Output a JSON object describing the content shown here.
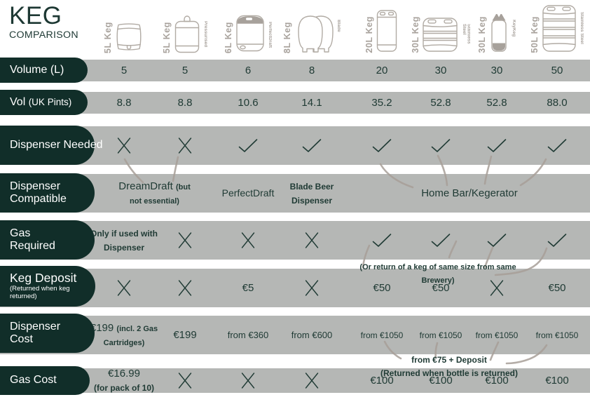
{
  "title": {
    "line1": "KEG",
    "line2": "COMPARISON"
  },
  "colors": {
    "pill_dark_green": "#112e29",
    "band_gray": "#b5b7b5",
    "text_green": "#203b35",
    "title_green": "#1d3833",
    "icon_gray": "#b1aba4",
    "keg_label_gray": "#a8a29c",
    "connector_taupe": "#a89f98"
  },
  "columns": [
    {
      "id": "keg-5l-barrel",
      "label": "5L Keg",
      "sublabel": "",
      "icon": "barrel-keg-icon"
    },
    {
      "id": "keg-5l-pressurised",
      "label": "5L Keg",
      "sublabel": "Pressurised",
      "icon": "pressurised-mini-keg-icon"
    },
    {
      "id": "keg-6l-perfectdraft",
      "label": "6L Keg",
      "sublabel": "PerfectDraft",
      "icon": "perfectdraft-keg-icon"
    },
    {
      "id": "keg-8l-blade",
      "label": "8L Keg",
      "sublabel": "Blade",
      "icon": "blade-keg-icon"
    },
    {
      "id": "keg-20l",
      "label": "20L Keg",
      "sublabel": "",
      "icon": "slim-steel-keg-icon"
    },
    {
      "id": "keg-30l-steel",
      "label": "30L Keg",
      "sublabel": "Stainless Steel",
      "icon": "stainless-keg-icon"
    },
    {
      "id": "keg-30l-keykeg",
      "label": "30L Keg",
      "sublabel": "KeyKeg",
      "icon": "keykeg-icon"
    },
    {
      "id": "keg-50l-steel",
      "label": "50L Keg",
      "sublabel": "Stainless Steel",
      "icon": "tall-stainless-keg-icon"
    }
  ],
  "rows": [
    {
      "id": "volume",
      "label_lines": [
        [
          {
            "t": "Volume (L)",
            "c": "pl"
          }
        ]
      ],
      "sub_lines": [],
      "cells": [
        {
          "col": 1,
          "t": "5"
        },
        {
          "col": 2,
          "t": "5"
        },
        {
          "col": 3,
          "t": "6"
        },
        {
          "col": 4,
          "t": "8"
        },
        {
          "col": 5,
          "t": "20"
        },
        {
          "col": 6,
          "t": "30"
        },
        {
          "col": 7,
          "t": "30"
        },
        {
          "col": 8,
          "t": "50"
        }
      ]
    },
    {
      "id": "pints",
      "label_lines": [
        [
          {
            "t": "Vol ",
            "c": "pl"
          },
          {
            "t": "(UK Pints)",
            "c": "pls"
          }
        ]
      ],
      "sub_lines": [],
      "cells": [
        {
          "col": 1,
          "t": "8.8"
        },
        {
          "col": 2,
          "t": "8.8"
        },
        {
          "col": 3,
          "t": "10.6"
        },
        {
          "col": 4,
          "t": "14.1"
        },
        {
          "col": 5,
          "t": "35.2"
        },
        {
          "col": 6,
          "t": "52.8"
        },
        {
          "col": 7,
          "t": "52.8"
        },
        {
          "col": 8,
          "t": "88.0"
        }
      ]
    },
    {
      "id": "dispenser-needed",
      "label_lines": [
        [
          {
            "t": "Dispenser Needed",
            "c": "pl"
          }
        ]
      ],
      "sub_lines": [],
      "cells": [
        {
          "col": 1,
          "k": "cross"
        },
        {
          "col": 2,
          "k": "cross"
        },
        {
          "col": 3,
          "k": "check"
        },
        {
          "col": 4,
          "k": "check"
        },
        {
          "col": 5,
          "k": "check"
        },
        {
          "col": 6,
          "k": "check"
        },
        {
          "col": 7,
          "k": "check"
        },
        {
          "col": 8,
          "k": "check"
        }
      ]
    },
    {
      "id": "dispenser-compatible",
      "label_lines": [
        [
          {
            "t": "Dispenser",
            "c": "pl"
          }
        ],
        [
          {
            "t": "Compatible",
            "c": "pl"
          }
        ]
      ],
      "sub_lines": [],
      "cells": [
        {
          "col": 1,
          "span": 2,
          "lines": [
            [
              {
                "t": "DreamDraft ",
                "c": "big"
              },
              {
                "t": "(but",
                "c": "smb"
              }
            ],
            [
              {
                "t": "not essential)",
                "c": "smb"
              }
            ]
          ]
        },
        {
          "col": 3,
          "t": "PerfectDraft",
          "c": "p14"
        },
        {
          "col": 4,
          "lines": [
            [
              {
                "t": "Blade Beer",
                "c": "md"
              }
            ],
            [
              {
                "t": "Dispenser",
                "c": "md"
              }
            ]
          ]
        },
        {
          "col": 5,
          "span": 4,
          "t": "Home Bar/Kegerator",
          "c": "p15"
        }
      ]
    },
    {
      "id": "gas-required",
      "label_lines": [
        [
          {
            "t": "Gas",
            "c": "pl"
          }
        ],
        [
          {
            "t": "Required",
            "c": "pl"
          }
        ]
      ],
      "sub_lines": [],
      "cells": [
        {
          "col": 1,
          "lines": [
            [
              {
                "t": "Only if used with",
                "c": "bld"
              }
            ],
            [
              {
                "t": "Dispenser",
                "c": "bld"
              }
            ]
          ]
        },
        {
          "col": 2,
          "k": "cross"
        },
        {
          "col": 3,
          "k": "cross"
        },
        {
          "col": 4,
          "k": "cross"
        },
        {
          "col": 5,
          "k": "check"
        },
        {
          "col": 6,
          "k": "check"
        },
        {
          "col": 7,
          "k": "check"
        },
        {
          "col": 8,
          "k": "check"
        }
      ]
    },
    {
      "id": "keg-deposit",
      "label_lines": [
        [
          {
            "t": "Keg Deposit",
            "c": "plk"
          }
        ]
      ],
      "sub_lines": [
        "(Returned when keg",
        "returned)"
      ],
      "cells": [
        {
          "col": 1,
          "k": "cross"
        },
        {
          "col": 2,
          "k": "cross"
        },
        {
          "col": 3,
          "t": "€5"
        },
        {
          "col": 4,
          "k": "cross"
        },
        {
          "col": 5,
          "t": "€50"
        },
        {
          "col": 6,
          "t": "€50"
        },
        {
          "col": 7,
          "k": "cross"
        },
        {
          "col": 8,
          "t": "€50"
        }
      ]
    },
    {
      "id": "dispenser-cost",
      "label_lines": [
        [
          {
            "t": "Dispenser",
            "c": "pl"
          }
        ],
        [
          {
            "t": "Cost",
            "c": "pl"
          }
        ]
      ],
      "sub_lines": [],
      "cells": [
        {
          "col": 1,
          "lines": [
            [
              {
                "t": "€199 ",
                "c": "num"
              },
              {
                "t": "(incl. 2 Gas",
                "c": "smb"
              }
            ],
            [
              {
                "t": "Cartridges)",
                "c": "smb"
              }
            ]
          ]
        },
        {
          "col": 2,
          "t": "€199"
        },
        {
          "col": 3,
          "t": "from €360",
          "c": "frm13"
        },
        {
          "col": 4,
          "t": "from €600",
          "c": "frm13"
        },
        {
          "col": 5,
          "t": "from €1050",
          "c": "frm12"
        },
        {
          "col": 6,
          "t": "from €1050",
          "c": "frm12"
        },
        {
          "col": 7,
          "t": "from €1050",
          "c": "frm12"
        },
        {
          "col": 8,
          "t": "from €1050",
          "c": "frm12"
        }
      ]
    },
    {
      "id": "gas-cost",
      "label_lines": [
        [
          {
            "t": "Gas Cost",
            "c": "pl"
          }
        ]
      ],
      "sub_lines": [],
      "cells": [
        {
          "col": 1,
          "lines": [
            [
              {
                "t": "€16.99",
                "c": "num"
              }
            ],
            [
              {
                "t": "(for pack of 10)",
                "c": "md"
              }
            ]
          ]
        },
        {
          "col": 2,
          "k": "cross"
        },
        {
          "col": 3,
          "k": "cross"
        },
        {
          "col": 4,
          "k": "cross"
        },
        {
          "col": 5,
          "t": "€100"
        },
        {
          "col": 6,
          "t": "€100"
        },
        {
          "col": 7,
          "t": "€100"
        },
        {
          "col": 8,
          "t": "€100"
        }
      ]
    }
  ],
  "annotations": [
    {
      "id": "keg-deposit-note",
      "lines": [
        [
          {
            "t": "(Or return of a keg of same size from same",
            "c": "ann"
          }
        ],
        [
          {
            "t": "Brewery)",
            "c": "ann"
          }
        ]
      ]
    },
    {
      "id": "gas-bottle-note",
      "lines": [
        [
          {
            "t": "from €75 + Deposit",
            "c": "ann12"
          }
        ],
        [
          {
            "t": "(Returned when bottle is returned)",
            "c": "ann12"
          }
        ]
      ]
    }
  ],
  "chart_data": {
    "type": "table",
    "title": "KEG COMPARISON",
    "columns": [
      "5L Keg",
      "5L Keg (Pressurised)",
      "6L Keg (PerfectDraft)",
      "8L Keg (Blade)",
      "20L Keg",
      "30L Keg (Stainless Steel)",
      "30L Keg (KeyKeg)",
      "50L Keg (Stainless Steel)"
    ],
    "rows": [
      {
        "label": "Volume (L)",
        "values": [
          "5",
          "5",
          "6",
          "8",
          "20",
          "30",
          "30",
          "50"
        ]
      },
      {
        "label": "Vol (UK Pints)",
        "values": [
          "8.8",
          "8.8",
          "10.6",
          "14.1",
          "35.2",
          "52.8",
          "52.8",
          "88.0"
        ]
      },
      {
        "label": "Dispenser Needed",
        "values": [
          "✗",
          "✗",
          "✓",
          "✓",
          "✓",
          "✓",
          "✓",
          "✓"
        ]
      },
      {
        "label": "Dispenser Compatible",
        "values": [
          "DreamDraft (but not essential)",
          "DreamDraft (but not essential)",
          "PerfectDraft",
          "Blade Beer Dispenser",
          "Home Bar/Kegerator",
          "Home Bar/Kegerator",
          "Home Bar/Kegerator",
          "Home Bar/Kegerator"
        ]
      },
      {
        "label": "Gas Required",
        "values": [
          "Only if used with Dispenser",
          "✗",
          "✗",
          "✗",
          "✓",
          "✓",
          "✓",
          "✓"
        ]
      },
      {
        "label": "Keg Deposit (Returned when keg returned)",
        "values": [
          "✗",
          "✗",
          "€5",
          "✗",
          "€50",
          "€50",
          "✗",
          "€50"
        ]
      },
      {
        "label": "Dispenser Cost",
        "values": [
          "€199 (incl. 2 Gas Cartridges)",
          "€199",
          "from €360",
          "from €600",
          "from €1050",
          "from €1050",
          "from €1050",
          "from €1050"
        ]
      },
      {
        "label": "Gas Cost",
        "values": [
          "€16.99 (for pack of 10)",
          "✗",
          "✗",
          "✗",
          "€100",
          "€100",
          "€100",
          "€100"
        ]
      }
    ],
    "notes": [
      "(Or return of a keg of same size from same Brewery)",
      "from €75 + Deposit (Returned when bottle is returned)"
    ]
  }
}
